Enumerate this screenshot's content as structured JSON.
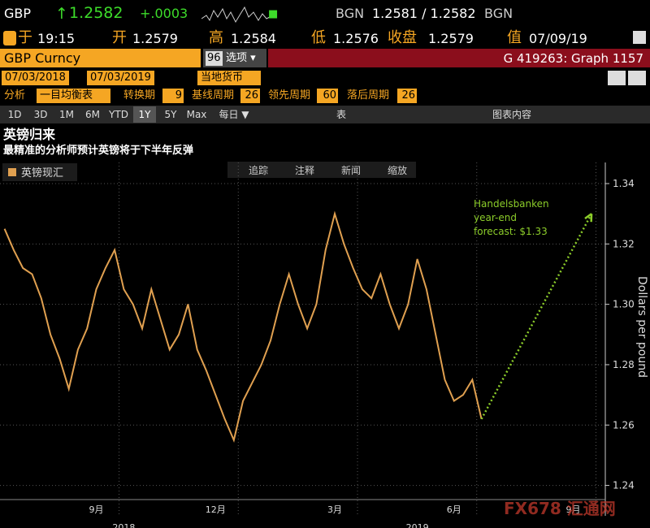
{
  "header": {
    "ticker": "GBP",
    "arrow": "↑",
    "last": "1.2582",
    "change": "+.0003",
    "source": "BGN",
    "bid_ask": "1.2581 / 1.2582",
    "source2": "BGN"
  },
  "quote": {
    "time_label": "于",
    "time": "19:15",
    "open_label": "开",
    "open": "1.2579",
    "high_label": "高",
    "high": "1.2584",
    "low_label": "低",
    "low": "1.2576",
    "close_label": "收盘",
    "close": "1.2579",
    "value_label": "值",
    "date": "07/09/19"
  },
  "security": {
    "name": "GBP Curncy",
    "badge": "96",
    "options": "选项 ▾",
    "graph": "G 419263: Graph 1157"
  },
  "range": {
    "start": "07/03/2018",
    "end": "07/03/2019",
    "currency": "当地货币"
  },
  "study": {
    "label": "分析",
    "name": "一目均衡表",
    "p1_label": "转换期",
    "p1": "9",
    "p2_label": "基线周期",
    "p2": "26",
    "p3_label": "领先周期",
    "p3": "60",
    "p4_label": "落后周期",
    "p4": "26"
  },
  "toolbar": {
    "periods": [
      "1D",
      "3D",
      "1M",
      "6M",
      "YTD",
      "1Y",
      "5Y",
      "Max"
    ],
    "frequency": "每日 ▼",
    "table": "表",
    "content": "图表内容"
  },
  "chart_tools": [
    "追踪",
    "注释",
    "新闻",
    "缩放"
  ],
  "watermark": "FX678 汇通网",
  "chart_data": {
    "type": "line",
    "title": "英镑归来",
    "subtitle": "最精准的分析师预计英镑将于下半年反弹",
    "y_label": "Dollars per pound",
    "categories": [
      null,
      null,
      null,
      null,
      null,
      null,
      null,
      null,
      null,
      null,
      "9月",
      null,
      null,
      null,
      null,
      null,
      null,
      null,
      null,
      null,
      null,
      null,
      null,
      "12月",
      null,
      null,
      null,
      null,
      null,
      null,
      null,
      null,
      null,
      null,
      null,
      null,
      "3月",
      null,
      null,
      null,
      null,
      null,
      null,
      null,
      null,
      null,
      null,
      null,
      null,
      "6月",
      null,
      null,
      null,
      null,
      null,
      null,
      null,
      null,
      null,
      null,
      null,
      null,
      "9月",
      null,
      null,
      null
    ],
    "years": [
      null,
      null,
      null,
      null,
      null,
      null,
      null,
      null,
      null,
      null,
      null,
      null,
      null,
      "2018",
      null,
      null,
      null,
      null,
      null,
      null,
      null,
      null,
      null,
      null,
      null,
      null,
      null,
      null,
      null,
      null,
      null,
      null,
      null,
      null,
      null,
      null,
      null,
      null,
      null,
      null,
      null,
      null,
      null,
      null,
      null,
      "2019",
      null,
      null,
      null,
      null,
      null,
      null,
      null,
      null,
      null,
      null,
      null,
      null,
      null,
      null,
      null,
      null,
      null,
      null,
      null,
      null
    ],
    "series": [
      {
        "name": "英镑现汇",
        "color": "#e0a050",
        "values": [
          1.325,
          1.318,
          1.312,
          1.31,
          1.302,
          1.29,
          1.282,
          1.272,
          1.285,
          1.292,
          1.305,
          1.312,
          1.318,
          1.305,
          1.3,
          1.292,
          1.305,
          1.295,
          1.285,
          1.29,
          1.3,
          1.285,
          1.278,
          1.27,
          1.262,
          1.255,
          1.268,
          1.274,
          1.28,
          1.288,
          1.3,
          1.31,
          1.3,
          1.292,
          1.3,
          1.318,
          1.33,
          1.32,
          1.312,
          1.305,
          1.302,
          1.31,
          1.3,
          1.292,
          1.3,
          1.315,
          1.305,
          1.29,
          1.275,
          1.268,
          1.27,
          1.275,
          1.262,
          null,
          null,
          null,
          null,
          null,
          null,
          null,
          null,
          null,
          null,
          null,
          null,
          null
        ]
      }
    ],
    "annotation": {
      "lines": [
        "Handelsbanken",
        "year-end",
        "forecast: $1.33"
      ],
      "value": 1.33,
      "color": "#8ccd2a"
    },
    "ylim": [
      1.238,
      1.347
    ],
    "yticks": [
      1.24,
      1.26,
      1.28,
      {
        "value": 1.3,
        "label": "1.30"
      },
      1.32,
      1.34
    ],
    "grid": true
  }
}
